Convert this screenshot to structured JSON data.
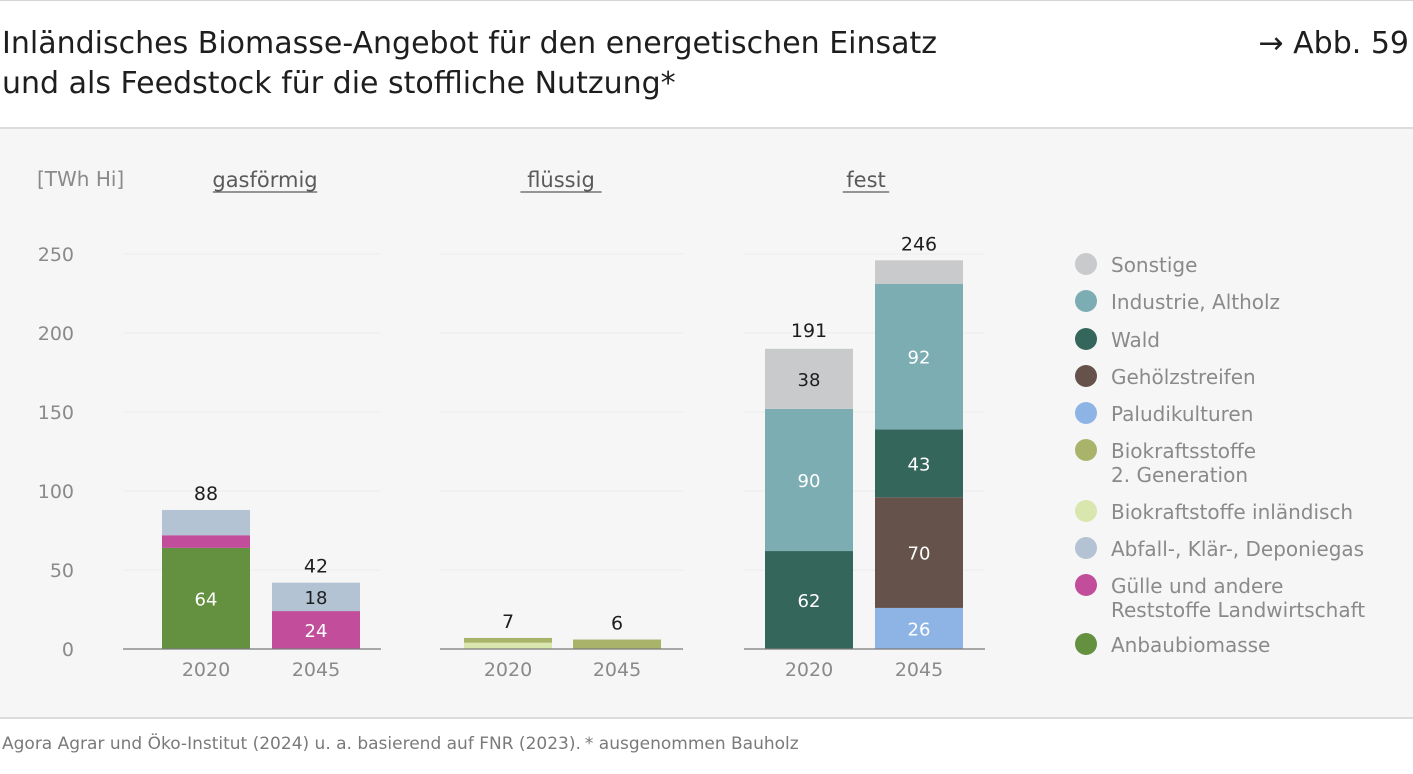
{
  "header": {
    "title_line1": "Inländisches Biomasse-Angebot für den energetischen Einsatz",
    "title_line2": "und als Feedstock für die stoffliche Nutzung*",
    "figure_ref": "→ Abb. 59"
  },
  "footer": {
    "source": "Agora Agrar und Öko-Institut (2024) u. a. basierend auf FNR (2023).",
    "note": "* ausgenommen Bauholz"
  },
  "colors": {
    "Sonstige": "#c9cacb",
    "Industrie, Altholz": "#7badb3",
    "Wald": "#35665b",
    "Gehölzstreifen": "#65524b",
    "Paludikulturen": "#8eb4e6",
    "Biokraftsstoffe 2. Generation": "#a9b46a",
    "Biokraftstoffe inländisch": "#d9e6ae",
    "Abfall-, Klär-, Deponiegas": "#b3c3d4",
    "Gülle und andere Reststoffe Landwirtschaft": "#c24d9b",
    "Anbaubiomasse": "#64913f"
  },
  "chart_data": {
    "type": "bar",
    "stacked": true,
    "unit_label": "[TWh Hi]",
    "ylim": [
      0,
      250
    ],
    "yticks": [
      0,
      50,
      100,
      150,
      200,
      250
    ],
    "categories": [
      "2020",
      "2045"
    ],
    "groups": [
      {
        "title": "gasförmig",
        "bars": [
          {
            "year": "2020",
            "total": 88,
            "segments": [
              {
                "series": "Anbaubiomasse",
                "value": 64,
                "label": "64"
              },
              {
                "series": "Gülle und andere Reststoffe Landwirtschaft",
                "value": 8,
                "label": ""
              },
              {
                "series": "Abfall-, Klär-, Deponiegas",
                "value": 16,
                "label": ""
              }
            ]
          },
          {
            "year": "2045",
            "total": 42,
            "segments": [
              {
                "series": "Gülle und andere Reststoffe Landwirtschaft",
                "value": 24,
                "label": "24"
              },
              {
                "series": "Abfall-, Klär-, Deponiegas",
                "value": 18,
                "label": "18"
              }
            ]
          }
        ]
      },
      {
        "title": "flüssig",
        "bars": [
          {
            "year": "2020",
            "total": 7,
            "segments": [
              {
                "series": "Biokraftstoffe inländisch",
                "value": 4,
                "label": ""
              },
              {
                "series": "Biokraftsstoffe 2. Generation",
                "value": 3,
                "label": ""
              }
            ]
          },
          {
            "year": "2045",
            "total": 6,
            "segments": [
              {
                "series": "Biokraftsstoffe 2. Generation",
                "value": 6,
                "label": ""
              }
            ]
          }
        ]
      },
      {
        "title": "fest",
        "bars": [
          {
            "year": "2020",
            "total": 191,
            "segments": [
              {
                "series": "Wald",
                "value": 62,
                "label": "62"
              },
              {
                "series": "Industrie, Altholz",
                "value": 90,
                "label": "90"
              },
              {
                "series": "Sonstige",
                "value": 38,
                "label": "38"
              }
            ]
          },
          {
            "year": "2045",
            "total": 246,
            "segments": [
              {
                "series": "Paludikulturen",
                "value": 26,
                "label": "26"
              },
              {
                "series": "Gehölzstreifen",
                "value": 70,
                "label": "70"
              },
              {
                "series": "Wald",
                "value": 43,
                "label": "43"
              },
              {
                "series": "Industrie, Altholz",
                "value": 92,
                "label": "92"
              },
              {
                "series": "Sonstige",
                "value": 15,
                "label": ""
              }
            ]
          }
        ]
      }
    ],
    "legend": [
      {
        "name": "Sonstige",
        "lines": [
          "Sonstige"
        ]
      },
      {
        "name": "Industrie, Altholz",
        "lines": [
          "Industrie, Altholz"
        ]
      },
      {
        "name": "Wald",
        "lines": [
          "Wald"
        ]
      },
      {
        "name": "Gehölzstreifen",
        "lines": [
          "Gehölzstreifen"
        ]
      },
      {
        "name": "Paludikulturen",
        "lines": [
          "Paludikulturen"
        ]
      },
      {
        "name": "Biokraftsstoffe 2. Generation",
        "lines": [
          "Biokraftsstoffe",
          "2. Generation"
        ]
      },
      {
        "name": "Biokraftstoffe inländisch",
        "lines": [
          "Biokraftstoffe inländisch"
        ]
      },
      {
        "name": "Abfall-, Klär-, Deponiegas",
        "lines": [
          "Abfall-, Klär-, Deponiegas"
        ]
      },
      {
        "name": "Gülle und andere Reststoffe Landwirtschaft",
        "lines": [
          "Gülle und andere",
          "Reststoffe Landwirtschaft"
        ]
      },
      {
        "name": "Anbaubiomasse",
        "lines": [
          "Anbaubiomasse"
        ]
      }
    ]
  }
}
